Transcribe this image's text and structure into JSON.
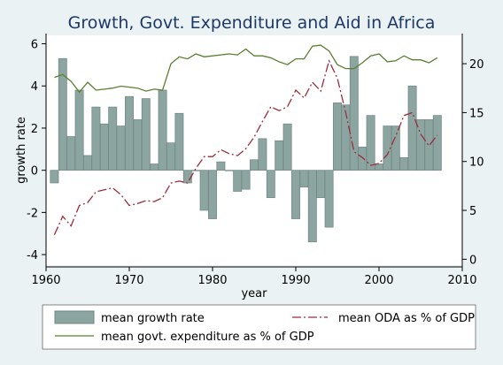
{
  "chart_data": {
    "type": "bar+line",
    "title": "Growth, Govt. Expenditure and Aid in Africa",
    "xlabel": "year",
    "ylabel_left": "growth rate",
    "ylabel_right": "",
    "x_range": [
      1960,
      2010
    ],
    "x_ticks": [
      1960,
      1970,
      1980,
      1990,
      2000,
      2010
    ],
    "y_left_range": [
      -4.5,
      6.4
    ],
    "y_left_ticks": [
      -4,
      -2,
      0,
      2,
      4,
      6
    ],
    "y_right_range": [
      -0.6,
      22.9
    ],
    "y_right_ticks": [
      0,
      5,
      10,
      15,
      20
    ],
    "grid": "none",
    "legend_position": "bottom",
    "colors": {
      "background": "#eaf2f3",
      "plot_background": "#ffffff",
      "bar_fill": "#8da5a0",
      "bar_stroke": "#6e8783",
      "govt_line": "#5b7f32",
      "oda_line": "#9b2c3c",
      "title": "#1e3868",
      "axis": "#000000"
    },
    "series": [
      {
        "name": "mean growth rate",
        "type": "bar",
        "axis": "left",
        "x": [
          1961,
          1962,
          1963,
          1964,
          1965,
          1966,
          1967,
          1968,
          1969,
          1970,
          1971,
          1972,
          1973,
          1974,
          1975,
          1976,
          1977,
          1978,
          1979,
          1980,
          1981,
          1982,
          1983,
          1984,
          1985,
          1986,
          1987,
          1988,
          1989,
          1990,
          1991,
          1992,
          1993,
          1994,
          1995,
          1996,
          1997,
          1998,
          1999,
          2000,
          2001,
          2002,
          2003,
          2004,
          2005,
          2006,
          2007
        ],
        "values": [
          -0.6,
          5.3,
          1.6,
          3.8,
          0.7,
          3.0,
          2.2,
          3.0,
          2.1,
          3.5,
          2.4,
          3.4,
          0.3,
          3.8,
          1.3,
          2.7,
          -0.6,
          0.0,
          -1.9,
          -2.3,
          0.4,
          0.0,
          -1.0,
          -0.9,
          0.5,
          1.5,
          -1.3,
          1.4,
          2.2,
          -2.3,
          -0.8,
          -3.4,
          -1.3,
          -2.7,
          3.2,
          3.1,
          5.4,
          1.1,
          2.6,
          0.3,
          2.1,
          2.1,
          0.6,
          4.0,
          2.4,
          2.4,
          2.6
        ]
      },
      {
        "name": "mean govt. expenditure as % of GDP",
        "type": "line",
        "style": "solid",
        "axis": "right",
        "x": [
          1961,
          1962,
          1963,
          1964,
          1965,
          1966,
          1967,
          1968,
          1969,
          1970,
          1971,
          1972,
          1973,
          1974,
          1975,
          1976,
          1977,
          1978,
          1979,
          1980,
          1981,
          1982,
          1983,
          1984,
          1985,
          1986,
          1987,
          1988,
          1989,
          1990,
          1991,
          1992,
          1993,
          1994,
          1995,
          1996,
          1997,
          1998,
          1999,
          2000,
          2001,
          2002,
          2003,
          2004,
          2005,
          2006,
          2007
        ],
        "values": [
          18.6,
          18.9,
          18.2,
          17.1,
          18.1,
          17.3,
          17.4,
          17.5,
          17.7,
          17.6,
          17.5,
          17.2,
          17.4,
          17.3,
          20.0,
          20.7,
          20.5,
          21.0,
          20.7,
          20.8,
          20.9,
          21.0,
          20.9,
          21.5,
          20.8,
          20.8,
          20.6,
          20.2,
          19.9,
          20.5,
          20.5,
          21.8,
          21.9,
          21.3,
          19.9,
          19.5,
          19.5,
          20.1,
          20.8,
          21.0,
          20.2,
          20.3,
          20.8,
          20.4,
          20.4,
          20.1,
          20.6
        ]
      },
      {
        "name": "mean ODA as % of GDP",
        "type": "line",
        "style": "dash-dot",
        "axis": "right",
        "x": [
          1961,
          1962,
          1963,
          1964,
          1965,
          1966,
          1967,
          1968,
          1969,
          1970,
          1971,
          1972,
          1973,
          1974,
          1975,
          1976,
          1977,
          1978,
          1979,
          1980,
          1981,
          1982,
          1983,
          1984,
          1985,
          1986,
          1987,
          1988,
          1989,
          1990,
          1991,
          1992,
          1993,
          1994,
          1995,
          1996,
          1997,
          1998,
          1999,
          2000,
          2001,
          2002,
          2003,
          2004,
          2005,
          2006,
          2007
        ],
        "values": [
          2.5,
          4.4,
          3.4,
          5.5,
          5.8,
          6.9,
          7.1,
          7.3,
          6.6,
          5.5,
          5.7,
          6.0,
          5.9,
          6.3,
          7.8,
          8.0,
          7.8,
          9.3,
          10.5,
          10.5,
          11.2,
          10.8,
          10.6,
          11.3,
          12.5,
          14.1,
          15.6,
          15.2,
          15.6,
          17.3,
          16.5,
          18.1,
          17.2,
          20.3,
          18.5,
          15.0,
          11.0,
          10.4,
          9.6,
          9.8,
          10.7,
          12.6,
          14.7,
          15.0,
          12.8,
          11.6,
          12.7
        ]
      }
    ]
  }
}
